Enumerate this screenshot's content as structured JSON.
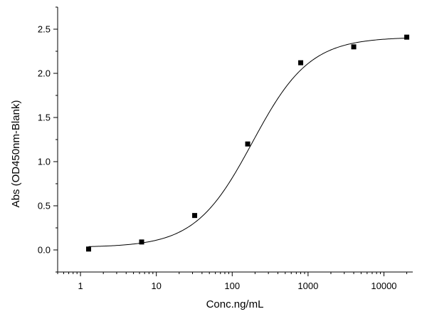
{
  "chart_data": {
    "type": "scatter",
    "xlabel": "Conc.ng/mL",
    "ylabel": "Abs (OD450nm-Blank)",
    "x_scale": "log",
    "xlim": [
      0.5,
      24000
    ],
    "ylim": [
      -0.25,
      2.75
    ],
    "x_ticks": [
      1,
      10,
      100,
      1000,
      10000
    ],
    "x_tick_labels": [
      "1",
      "10",
      "100",
      "1000",
      "10000"
    ],
    "y_ticks": [
      0.0,
      0.5,
      1.0,
      1.5,
      2.0,
      2.5
    ],
    "y_tick_labels": [
      "0.0",
      "0.5",
      "1.0",
      "1.5",
      "2.0",
      "2.5"
    ],
    "grid": false,
    "series": [
      {
        "x": [
          1.28,
          6.4,
          32,
          160,
          800,
          4000,
          20000
        ],
        "y": [
          0.01,
          0.09,
          0.39,
          1.2,
          2.12,
          2.3,
          2.41
        ]
      }
    ],
    "fit_curve": {
      "model": "4PL",
      "bottom": 0.03,
      "top": 2.41,
      "ec50": 185,
      "hill": 1.15
    },
    "colors": {
      "points": "#000000",
      "curve": "#000000",
      "axes": "#000000"
    }
  }
}
